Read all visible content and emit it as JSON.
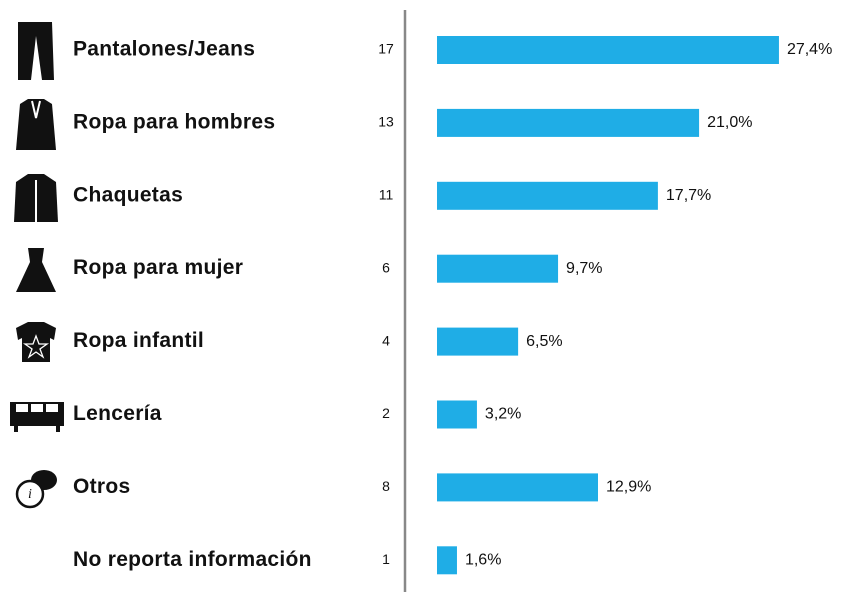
{
  "chart_data": {
    "type": "bar",
    "categories": [
      "Pantalones/Jeans",
      "Ropa para hombres",
      "Chaquetas",
      "Ropa para mujer",
      "Ropa infantil",
      "Lencería",
      "Otros",
      "No reporta información"
    ],
    "counts": [
      17,
      13,
      11,
      6,
      4,
      2,
      8,
      1
    ],
    "values": [
      27.4,
      21.0,
      17.7,
      9.7,
      6.5,
      3.2,
      12.9,
      1.6
    ],
    "value_labels": [
      "27,4%",
      "21,0%",
      "17,7%",
      "9,7%",
      "6,5%",
      "3,2%",
      "12,9%",
      "1,6%"
    ],
    "color": "#1fade6"
  }
}
